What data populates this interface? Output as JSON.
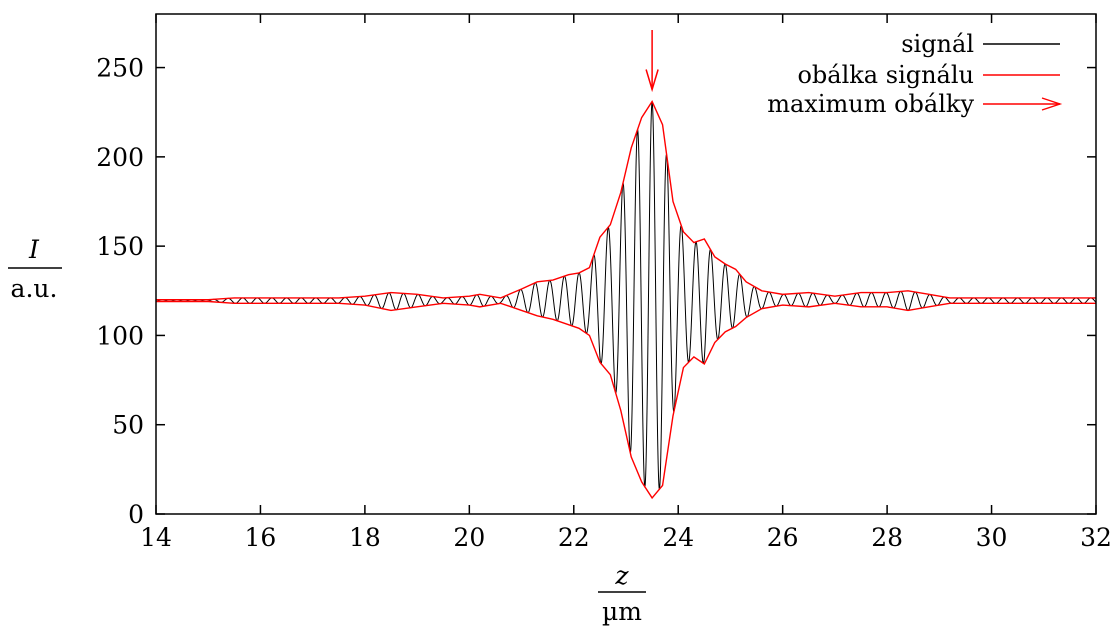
{
  "chart_data": {
    "type": "line",
    "xlabel": "z",
    "xunit": "µm",
    "ylabel": "I",
    "yunit": "a.u.",
    "xlim": [
      14,
      32
    ],
    "ylim": [
      0,
      280
    ],
    "xticks": [
      14,
      16,
      18,
      20,
      22,
      24,
      26,
      28,
      30,
      32
    ],
    "yticks": [
      0,
      50,
      100,
      150,
      200,
      250
    ],
    "grid": false,
    "legend_position": "top-right",
    "baseline": 120,
    "carrier_period_um": 0.28,
    "series": [
      {
        "name": "signál",
        "color": "#000000",
        "kind": "oscillating signal between lower and upper envelope"
      },
      {
        "name": "obálka signálu",
        "color": "#ff0000",
        "kind": "envelope (upper and lower)"
      },
      {
        "name": "maximum obálky",
        "color": "#ff0000",
        "kind": "arrow marker"
      }
    ],
    "envelope_upper": {
      "x": [
        14,
        15,
        15.5,
        16,
        16.5,
        17,
        17.5,
        18,
        18.5,
        19,
        19.5,
        20,
        20.2,
        20.6,
        21,
        21.3,
        21.6,
        21.9,
        22.1,
        22.3,
        22.5,
        22.7,
        22.9,
        23.1,
        23.3,
        23.5,
        23.7,
        23.9,
        24.1,
        24.3,
        24.5,
        24.7,
        24.9,
        25.1,
        25.3,
        25.6,
        26,
        26.5,
        27,
        27.5,
        28,
        28.4,
        28.8,
        29.2,
        29.6,
        30,
        30.5,
        31,
        31.5,
        32
      ],
      "y": [
        120,
        120,
        121,
        121,
        121,
        121,
        121,
        122,
        124,
        123,
        121,
        122,
        123,
        121,
        126,
        130,
        131,
        134,
        135,
        138,
        155,
        162,
        180,
        205,
        222,
        231,
        218,
        175,
        158,
        152,
        154,
        144,
        140,
        137,
        130,
        125,
        123,
        124,
        122,
        124,
        124,
        125,
        123,
        121,
        121,
        121,
        121,
        121,
        121,
        121
      ]
    },
    "envelope_lower": {
      "x": [
        14,
        15,
        15.5,
        16,
        16.5,
        17,
        17.5,
        18,
        18.5,
        19,
        19.5,
        20,
        20.2,
        20.6,
        21,
        21.3,
        21.6,
        21.9,
        22.1,
        22.3,
        22.5,
        22.7,
        22.9,
        23.1,
        23.3,
        23.5,
        23.7,
        23.9,
        24.1,
        24.3,
        24.5,
        24.7,
        24.9,
        25.1,
        25.3,
        25.6,
        26,
        26.5,
        27,
        27.5,
        28,
        28.4,
        28.8,
        29.2,
        29.6,
        30,
        30.5,
        31,
        31.5,
        32
      ],
      "y": [
        119,
        119,
        118,
        118,
        118,
        118,
        118,
        117,
        114,
        116,
        118,
        117,
        116,
        118,
        114,
        111,
        109,
        106,
        104,
        100,
        85,
        78,
        58,
        32,
        18,
        9,
        16,
        55,
        82,
        88,
        84,
        96,
        102,
        105,
        110,
        115,
        117,
        116,
        118,
        116,
        116,
        114,
        116,
        118,
        118,
        118,
        118,
        118,
        118,
        118
      ]
    },
    "envelope_maximum": {
      "x": 23.5,
      "y": 231
    }
  }
}
